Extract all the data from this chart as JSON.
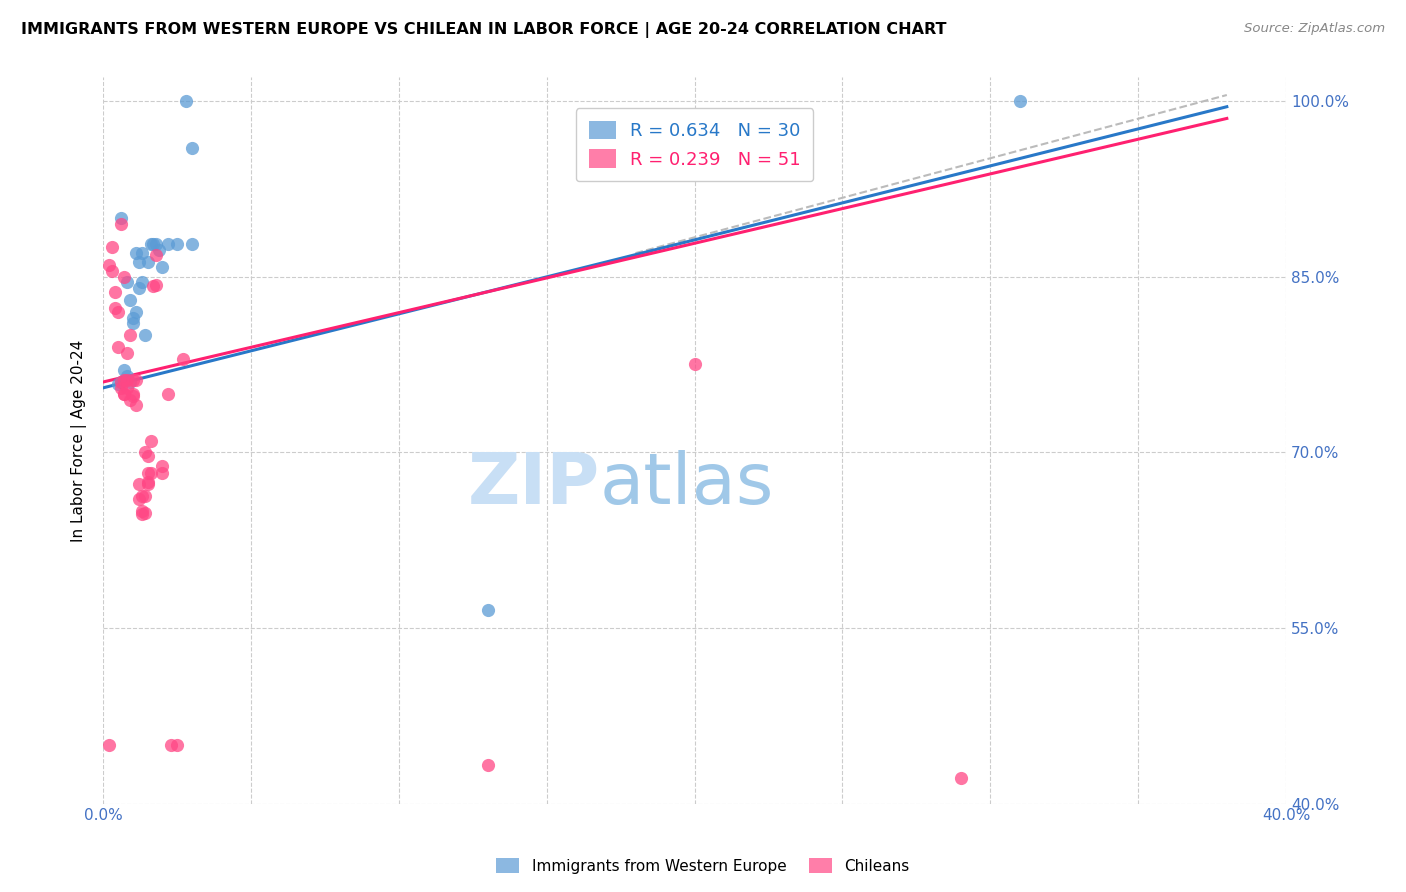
{
  "title": "IMMIGRANTS FROM WESTERN EUROPE VS CHILEAN IN LABOR FORCE | AGE 20-24 CORRELATION CHART",
  "source": "Source: ZipAtlas.com",
  "ylabel": "In Labor Force | Age 20-24",
  "xlim": [
    0.0,
    0.4
  ],
  "ylim": [
    0.4,
    1.02
  ],
  "yticks": [
    0.4,
    0.55,
    0.7,
    0.85,
    1.0
  ],
  "ytick_labels": [
    "40.0%",
    "55.0%",
    "70.0%",
    "85.0%",
    "100.0%"
  ],
  "xticks": [
    0.0,
    0.05,
    0.1,
    0.15,
    0.2,
    0.25,
    0.3,
    0.35,
    0.4
  ],
  "xtick_labels": [
    "0.0%",
    "",
    "",
    "",
    "",
    "",
    "",
    "",
    "40.0%"
  ],
  "blue_R": 0.634,
  "blue_N": 30,
  "pink_R": 0.239,
  "pink_N": 51,
  "blue_color": "#5B9BD5",
  "pink_color": "#FF4785",
  "blue_line_color": "#2878C8",
  "pink_line_color": "#FF2070",
  "watermark_zip": "ZIP",
  "watermark_atlas": "atlas",
  "legend_blue_label": "Immigrants from Western Europe",
  "legend_pink_label": "Chileans",
  "blue_scatter_x": [
    0.005,
    0.006,
    0.006,
    0.007,
    0.008,
    0.008,
    0.009,
    0.009,
    0.01,
    0.01,
    0.011,
    0.011,
    0.012,
    0.012,
    0.013,
    0.013,
    0.014,
    0.015,
    0.016,
    0.017,
    0.018,
    0.019,
    0.02,
    0.022,
    0.025,
    0.028,
    0.03,
    0.03,
    0.13,
    0.31
  ],
  "blue_scatter_y": [
    0.758,
    0.76,
    0.9,
    0.77,
    0.765,
    0.845,
    0.76,
    0.83,
    0.81,
    0.815,
    0.82,
    0.87,
    0.84,
    0.862,
    0.845,
    0.87,
    0.8,
    0.862,
    0.878,
    0.878,
    0.878,
    0.873,
    0.858,
    0.878,
    0.878,
    1.0,
    0.878,
    0.96,
    0.565,
    1.0
  ],
  "pink_scatter_x": [
    0.002,
    0.003,
    0.003,
    0.004,
    0.004,
    0.005,
    0.005,
    0.006,
    0.006,
    0.006,
    0.007,
    0.007,
    0.007,
    0.007,
    0.008,
    0.008,
    0.008,
    0.009,
    0.009,
    0.01,
    0.01,
    0.01,
    0.011,
    0.011,
    0.012,
    0.012,
    0.013,
    0.013,
    0.013,
    0.014,
    0.014,
    0.014,
    0.015,
    0.015,
    0.015,
    0.015,
    0.016,
    0.016,
    0.017,
    0.018,
    0.018,
    0.02,
    0.02,
    0.022,
    0.023,
    0.025,
    0.027,
    0.13,
    0.2,
    0.29,
    0.002
  ],
  "pink_scatter_y": [
    0.86,
    0.855,
    0.875,
    0.823,
    0.837,
    0.79,
    0.82,
    0.76,
    0.755,
    0.895,
    0.75,
    0.75,
    0.762,
    0.85,
    0.755,
    0.762,
    0.785,
    0.745,
    0.8,
    0.748,
    0.75,
    0.762,
    0.74,
    0.762,
    0.66,
    0.673,
    0.65,
    0.663,
    0.647,
    0.648,
    0.663,
    0.7,
    0.697,
    0.673,
    0.675,
    0.682,
    0.71,
    0.682,
    0.842,
    0.843,
    0.868,
    0.682,
    0.688,
    0.75,
    0.45,
    0.45,
    0.78,
    0.433,
    0.775,
    0.422,
    0.45
  ],
  "blue_trendline_x": [
    0.0,
    0.38
  ],
  "blue_trendline_y": [
    0.755,
    0.995
  ],
  "pink_trendline_x": [
    0.0,
    0.38
  ],
  "pink_trendline_y": [
    0.76,
    0.985
  ],
  "dashed_trendline_x": [
    0.18,
    0.38
  ],
  "dashed_trendline_y": [
    0.87,
    1.005
  ]
}
